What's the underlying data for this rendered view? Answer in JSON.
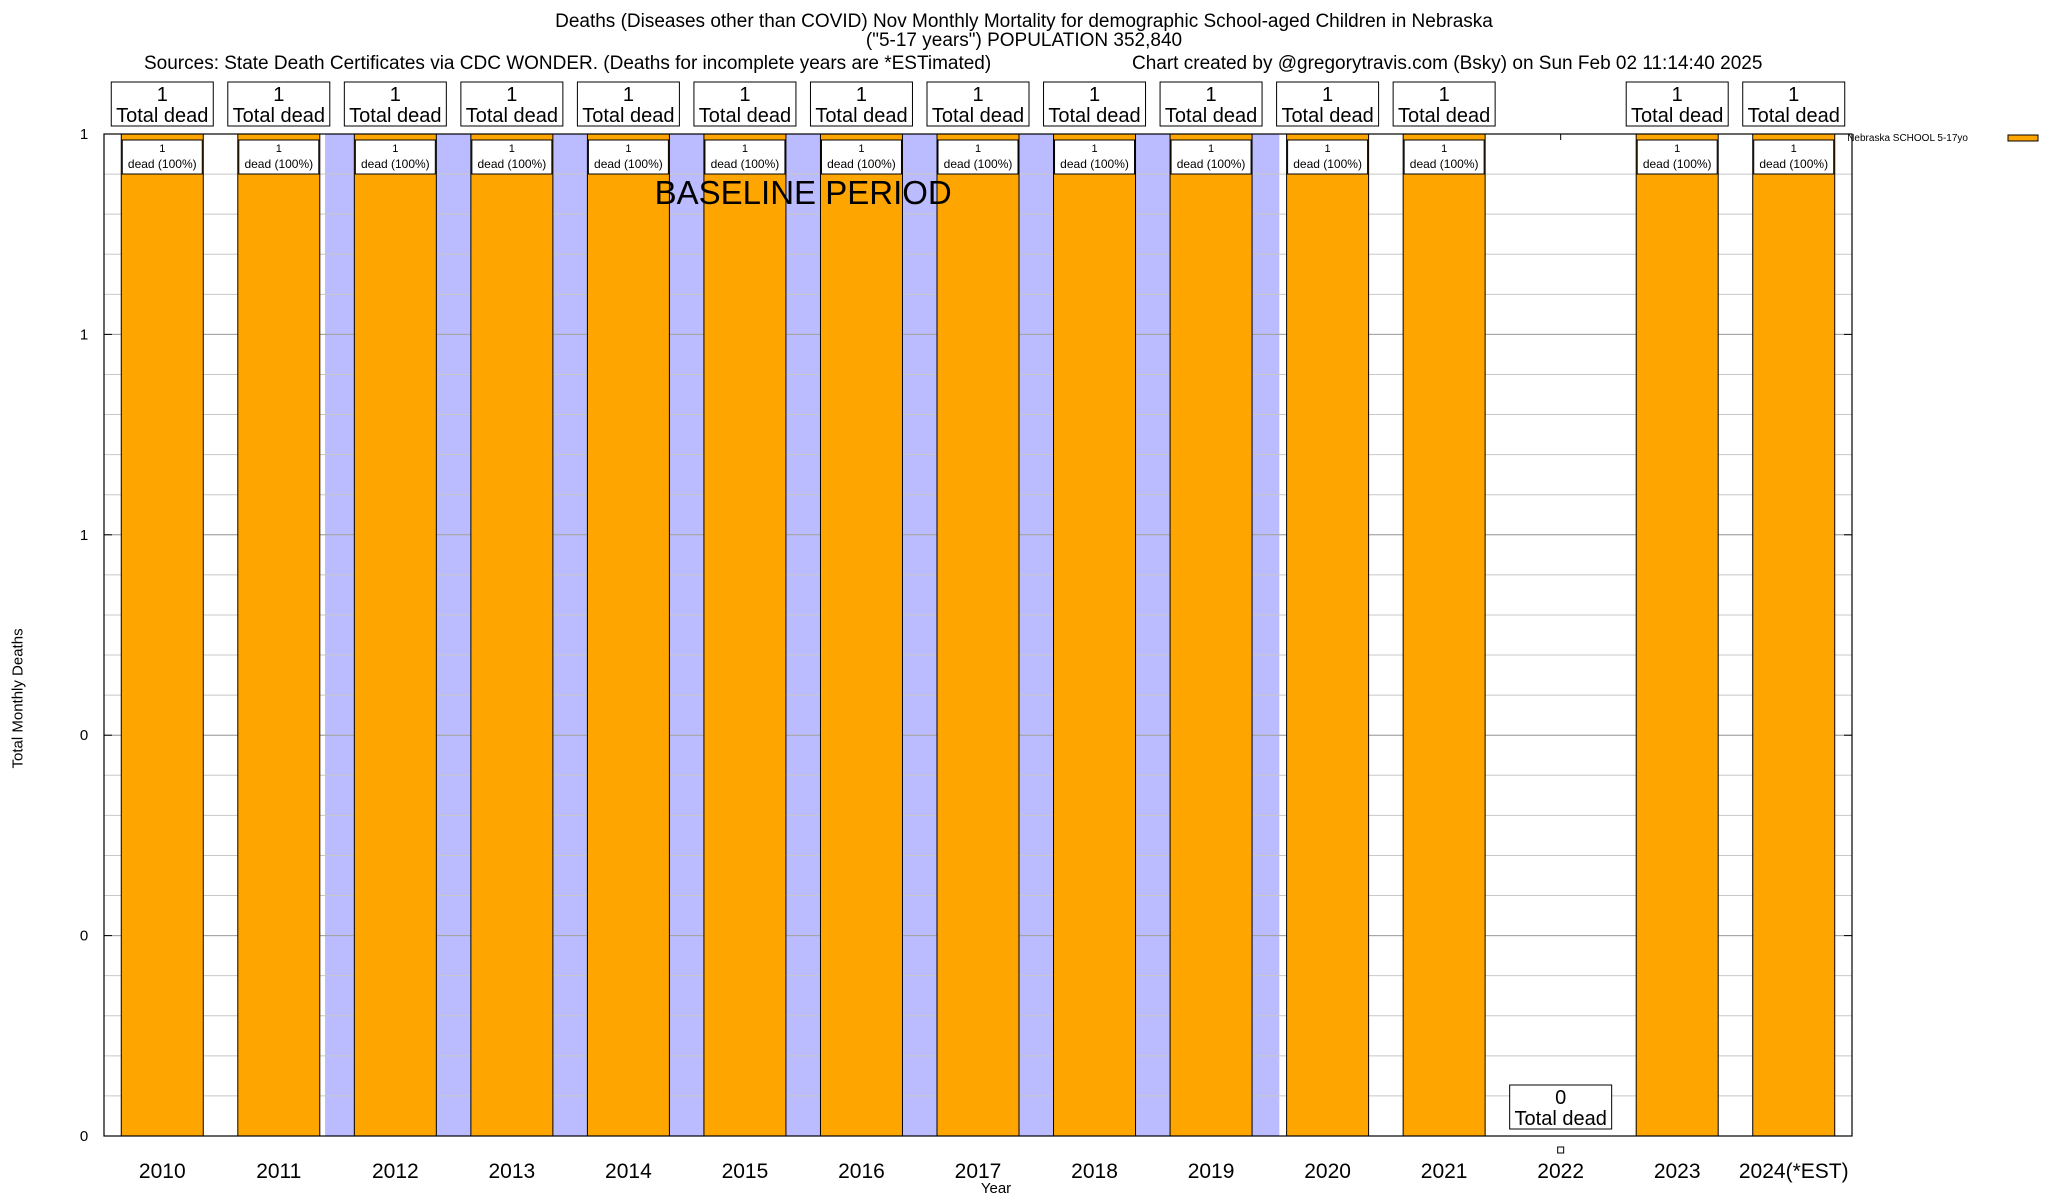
{
  "title": {
    "line1": "Deaths (Diseases other than COVID) Nov Monthly Mortality for demographic School-aged Children in Nebraska",
    "line2": "(\"5-17 years\") POPULATION 352,840",
    "sources": "Sources: State Death Certificates via CDC WONDER. (Deaths for incomplete years are *ESTimated)",
    "credit": "Chart created by @gregorytravis.com (Bsky) on Sun Feb 02 11:14:40 2025"
  },
  "chart_data": {
    "type": "bar",
    "categories": [
      "2010",
      "2011",
      "2012",
      "2013",
      "2014",
      "2015",
      "2016",
      "2017",
      "2018",
      "2019",
      "2020",
      "2021",
      "2022",
      "2023",
      "2024(*EST)"
    ],
    "series": [
      {
        "name": "Nebraska SCHOOL 5-17yo",
        "values": [
          1,
          1,
          1,
          1,
          1,
          1,
          1,
          1,
          1,
          1,
          1,
          1,
          0,
          1,
          1
        ],
        "color": "#ffa500"
      }
    ],
    "total_labels": [
      "1",
      "1",
      "1",
      "1",
      "1",
      "1",
      "1",
      "1",
      "1",
      "1",
      "1",
      "1",
      "0",
      "1",
      "1"
    ],
    "total_suffix": "Total dead",
    "inner_labels": [
      "1",
      "1",
      "1",
      "1",
      "1",
      "1",
      "1",
      "1",
      "1",
      "1",
      "1",
      "1",
      "",
      "1",
      "1"
    ],
    "inner_suffix": "dead (100%)",
    "xlabel": "Year",
    "ylabel": "Total Monthly Deaths",
    "ylim": [
      0,
      1
    ],
    "ytick_labels": [
      "0",
      "0",
      "0",
      "1",
      "1",
      "1"
    ],
    "grid": true,
    "legend_position": "top-right",
    "baseline_period": {
      "label": "BASELINE PERIOD",
      "from": "2012",
      "to": "2019",
      "color": "#bbbbff"
    },
    "bar_color": "#ffa500"
  }
}
